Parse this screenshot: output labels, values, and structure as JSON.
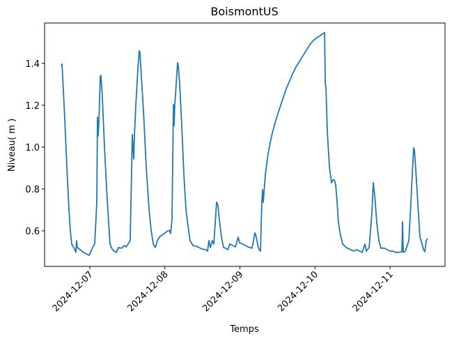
{
  "chart_data": {
    "type": "line",
    "title": "BoismontUS",
    "x_label": "Temps",
    "y_label": "Niveau( m )",
    "color": "#1f77b4",
    "x": [
      20063.62,
      20063.629,
      20063.638,
      20063.666,
      20063.694,
      20063.722,
      20063.74,
      20063.759,
      20063.796,
      20063.814,
      20063.824,
      20063.833,
      20063.87,
      20063.916,
      20063.954,
      20063.991,
      20064.037,
      20064.065,
      20064.093,
      20064.102,
      20064.111,
      20064.121,
      20064.139,
      20064.148,
      20064.167,
      20064.195,
      20064.223,
      20064.251,
      20064.269,
      20064.297,
      20064.325,
      20064.353,
      20064.381,
      20064.427,
      20064.455,
      20064.483,
      20064.51,
      20064.538,
      20064.566,
      20064.585,
      20064.594,
      20064.613,
      20064.64,
      20064.659,
      20064.668,
      20064.687,
      20064.715,
      20064.752,
      20064.789,
      20064.817,
      20064.845,
      20064.872,
      20064.9,
      20064.928,
      20064.974,
      20065.03,
      20065.058,
      20065.077,
      20065.095,
      20065.114,
      20065.123,
      20065.132,
      20065.151,
      20065.169,
      20065.179,
      20065.197,
      20065.225,
      20065.253,
      20065.281,
      20065.309,
      20065.336,
      20065.374,
      20065.411,
      20065.457,
      20065.494,
      20065.541,
      20065.568,
      20065.587,
      20065.606,
      20065.633,
      20065.652,
      20065.671,
      20065.689,
      20065.708,
      20065.726,
      20065.754,
      20065.782,
      20065.81,
      20065.838,
      20065.865,
      20065.903,
      20065.94,
      20065.977,
      20065.995,
      20066.033,
      20066.07,
      20066.107,
      20066.162,
      20066.2,
      20066.218,
      20066.246,
      20066.274,
      20066.292,
      20066.302,
      20066.311,
      20066.339,
      20066.376,
      20066.422,
      20066.469,
      20066.515,
      20066.562,
      20066.608,
      20066.654,
      20066.701,
      20066.747,
      20066.794,
      20066.84,
      20066.886,
      20066.933,
      20066.979,
      20067.026,
      20067.072,
      20067.109,
      20067.128,
      20067.137,
      20067.146,
      20067.165,
      20067.193,
      20067.221,
      20067.239,
      20067.258,
      20067.276,
      20067.295,
      20067.313,
      20067.341,
      20067.369,
      20067.415,
      20067.471,
      20067.517,
      20067.555,
      20067.592,
      20067.629,
      20067.666,
      20067.685,
      20067.722,
      20067.759,
      20067.777,
      20067.796,
      20067.824,
      20067.852,
      20067.879,
      20067.926,
      20067.963,
      20068.0,
      20068.037,
      20068.074,
      20068.121,
      20068.158,
      20068.167,
      20068.176,
      20068.204,
      20068.251,
      20068.278,
      20068.306,
      20068.316,
      20068.325,
      20068.353,
      20068.381,
      20068.399,
      20068.427,
      20068.446,
      20068.464,
      20068.483,
      20068.501
    ],
    "values": [
      1.387,
      1.397,
      1.337,
      1.137,
      0.903,
      0.703,
      0.603,
      0.537,
      0.513,
      0.497,
      0.553,
      0.52,
      0.51,
      0.497,
      0.49,
      0.483,
      0.52,
      0.537,
      0.737,
      1.143,
      1.053,
      1.12,
      1.337,
      1.343,
      1.237,
      1.003,
      0.803,
      0.637,
      0.537,
      0.513,
      0.503,
      0.497,
      0.52,
      0.517,
      0.53,
      0.523,
      0.537,
      0.553,
      1.06,
      0.943,
      1.053,
      1.203,
      1.37,
      1.46,
      1.453,
      1.337,
      1.17,
      0.903,
      0.703,
      0.603,
      0.537,
      0.52,
      0.553,
      0.57,
      0.583,
      0.597,
      0.603,
      0.587,
      0.653,
      1.203,
      1.103,
      1.203,
      1.303,
      1.403,
      1.387,
      1.303,
      1.103,
      0.87,
      0.703,
      0.62,
      0.553,
      0.53,
      0.527,
      0.52,
      0.513,
      0.51,
      0.503,
      0.553,
      0.52,
      0.553,
      0.537,
      0.637,
      0.737,
      0.72,
      0.653,
      0.57,
      0.52,
      0.517,
      0.51,
      0.537,
      0.53,
      0.523,
      0.57,
      0.543,
      0.537,
      0.53,
      0.523,
      0.517,
      0.59,
      0.57,
      0.517,
      0.503,
      0.737,
      0.797,
      0.737,
      0.87,
      0.97,
      1.053,
      1.117,
      1.17,
      1.22,
      1.27,
      1.31,
      1.35,
      1.383,
      1.41,
      1.437,
      1.463,
      1.49,
      1.51,
      1.523,
      1.533,
      1.543,
      1.547,
      1.303,
      1.287,
      1.07,
      0.903,
      0.83,
      0.843,
      0.843,
      0.82,
      0.737,
      0.637,
      0.577,
      0.537,
      0.52,
      0.51,
      0.503,
      0.51,
      0.503,
      0.497,
      0.537,
      0.503,
      0.52,
      0.687,
      0.83,
      0.77,
      0.637,
      0.553,
      0.517,
      0.517,
      0.51,
      0.503,
      0.503,
      0.497,
      0.497,
      0.5,
      0.643,
      0.497,
      0.503,
      0.553,
      0.737,
      0.937,
      0.997,
      0.987,
      0.837,
      0.67,
      0.57,
      0.537,
      0.51,
      0.5,
      0.553,
      0.563
    ],
    "xlim": [
      20063.397,
      20068.733
    ],
    "ylim": [
      0.43,
      1.593
    ],
    "xticks": [
      {
        "value": 20064,
        "label": "2024-12-07"
      },
      {
        "value": 20065,
        "label": "2024-12-08"
      },
      {
        "value": 20066,
        "label": "2024-12-09"
      },
      {
        "value": 20067,
        "label": "2024-12-10"
      },
      {
        "value": 20068,
        "label": "2024-12-11"
      }
    ],
    "yticks": [
      {
        "value": 0.6,
        "label": "0.6"
      },
      {
        "value": 0.8,
        "label": "0.8"
      },
      {
        "value": 1.0,
        "label": "1.0"
      },
      {
        "value": 1.2,
        "label": "1.2"
      },
      {
        "value": 1.4,
        "label": "1.4"
      }
    ],
    "grid": false
  }
}
